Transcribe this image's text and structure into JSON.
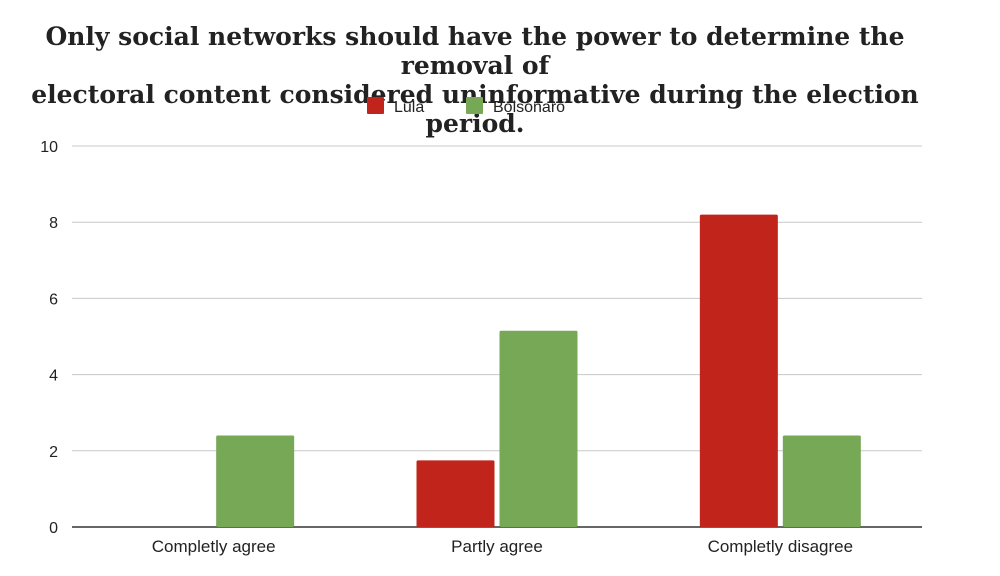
{
  "chart_data": {
    "type": "bar",
    "title": "Only social networks should have the power to determine the removal of electoral content considered uninformative during the election period.",
    "title_lines": [
      "Only social networks should have the power to determine the removal of",
      "electoral content considered uninformative during the election period."
    ],
    "categories": [
      "Completly agree",
      "Partly agree",
      "Completly disagree"
    ],
    "series": [
      {
        "name": "Lula",
        "color": "#c0241b",
        "values": [
          0,
          1.75,
          8.2
        ]
      },
      {
        "name": "Bolsonaro",
        "color": "#76a856",
        "values": [
          2.4,
          5.15,
          2.4
        ]
      }
    ],
    "ylim": [
      0,
      10
    ],
    "yticks": [
      0,
      2,
      4,
      6,
      8,
      10
    ],
    "grid": true,
    "legend_position": "top-center"
  }
}
